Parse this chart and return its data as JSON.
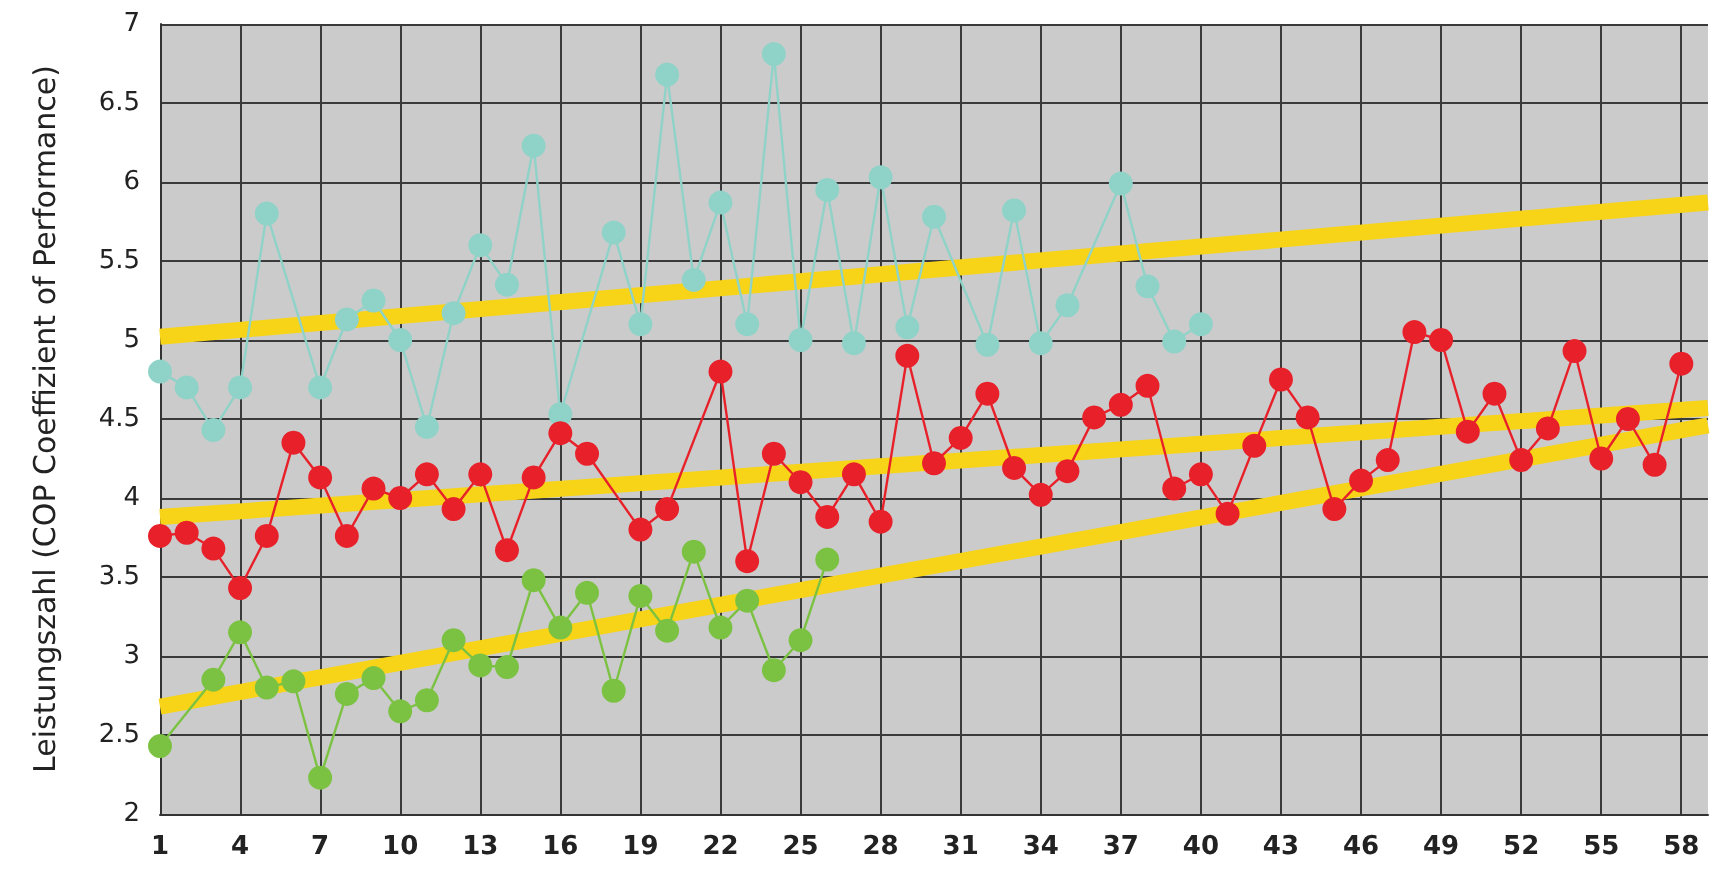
{
  "chart_data": {
    "type": "line",
    "ylabel": "Leistungszahl (COP Coeffizient of Performance)",
    "xlim": [
      1,
      59
    ],
    "xticks": [
      1,
      4,
      7,
      10,
      13,
      16,
      19,
      22,
      25,
      28,
      31,
      34,
      37,
      40,
      43,
      46,
      49,
      52,
      55,
      58
    ],
    "ylim": [
      2,
      7
    ],
    "yticks": [
      2,
      2.5,
      3,
      3.5,
      4,
      4.5,
      5,
      5.5,
      6,
      6.5,
      7
    ],
    "grid": true,
    "marker": "circle",
    "series": [
      {
        "color": "#8fd3c8",
        "x": [
          1,
          2,
          3,
          4,
          5,
          7,
          8,
          9,
          10,
          11,
          12,
          13,
          14,
          15,
          16,
          18,
          19,
          20,
          21,
          22,
          23,
          24,
          25,
          26,
          27,
          28,
          29,
          30,
          32,
          33,
          34,
          35,
          37,
          38,
          39,
          40
        ],
        "values": [
          4.8,
          4.7,
          4.43,
          4.7,
          5.8,
          4.7,
          5.13,
          5.25,
          5.0,
          4.45,
          5.17,
          5.6,
          5.35,
          6.23,
          4.53,
          5.68,
          5.1,
          6.68,
          5.38,
          5.87,
          5.1,
          6.81,
          5.0,
          5.95,
          4.98,
          6.03,
          5.08,
          5.78,
          4.97,
          5.82,
          4.98,
          5.22,
          5.99,
          5.34,
          4.99,
          5.1
        ]
      },
      {
        "color": "#e8202a",
        "x": [
          1,
          2,
          3,
          4,
          5,
          6,
          7,
          8,
          9,
          10,
          11,
          12,
          13,
          14,
          15,
          16,
          17,
          19,
          20,
          22,
          23,
          24,
          25,
          26,
          27,
          28,
          29,
          30,
          31,
          32,
          33,
          34,
          35,
          36,
          37,
          38,
          39,
          40,
          41,
          42,
          43,
          44,
          45,
          46,
          47,
          48,
          49,
          50,
          51,
          52,
          53,
          54,
          55,
          56,
          57,
          58
        ],
        "values": [
          3.76,
          3.78,
          3.68,
          3.43,
          3.76,
          4.35,
          4.13,
          3.76,
          4.06,
          4.0,
          4.15,
          3.93,
          4.15,
          3.67,
          4.13,
          4.41,
          4.28,
          3.8,
          3.93,
          4.8,
          3.6,
          4.28,
          4.1,
          3.88,
          4.15,
          3.85,
          4.9,
          4.22,
          4.38,
          4.66,
          4.19,
          4.02,
          4.17,
          4.51,
          4.59,
          4.71,
          4.06,
          4.15,
          3.9,
          4.33,
          4.75,
          4.51,
          3.93,
          4.11,
          4.24,
          5.05,
          5.0,
          4.42,
          4.66,
          4.24,
          4.44,
          4.93,
          4.25,
          4.5,
          4.21,
          4.85
        ]
      },
      {
        "color": "#7cc242",
        "x": [
          1,
          3,
          4,
          5,
          6,
          7,
          8,
          9,
          10,
          11,
          12,
          13,
          14,
          15,
          16,
          17,
          18,
          19,
          20,
          21,
          22,
          23,
          24,
          25,
          26
        ],
        "values": [
          2.43,
          2.85,
          3.15,
          2.8,
          2.84,
          2.23,
          2.76,
          2.86,
          2.65,
          2.72,
          3.1,
          2.94,
          2.93,
          3.48,
          3.18,
          3.4,
          2.78,
          3.38,
          3.16,
          3.66,
          3.18,
          3.35,
          2.91,
          3.1,
          3.61
        ]
      },
      {
        "color": "#f7d417",
        "marker": "none",
        "x": [
          1,
          59
        ],
        "values": [
          5.02,
          5.87
        ]
      },
      {
        "color": "#f7d417",
        "marker": "none",
        "x": [
          1,
          59
        ],
        "values": [
          3.88,
          4.57
        ]
      },
      {
        "color": "#f7d417",
        "marker": "none",
        "x": [
          1,
          59
        ],
        "values": [
          2.68,
          4.46
        ]
      }
    ]
  }
}
